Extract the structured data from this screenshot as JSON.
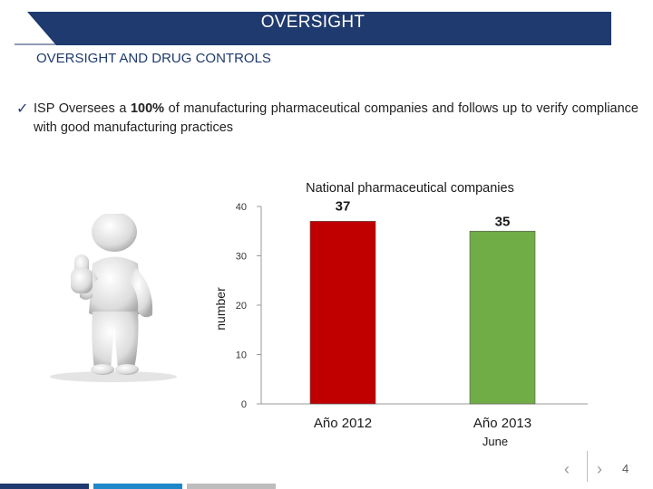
{
  "header": {
    "title": "OVERSIGHT",
    "banner_color": "#1f3a6e"
  },
  "section": {
    "title": "OVERSIGHT AND DRUG CONTROLS"
  },
  "bullet": {
    "check_icon": "check-icon",
    "segments": [
      {
        "text": "ISP Oversees a ",
        "bold": false
      },
      {
        "text": "100%",
        "bold": true
      },
      {
        "text": " of manufacturing pharmaceutical companies and follows up to verify compliance with good manufacturing practices",
        "bold": false
      }
    ]
  },
  "chart_data": {
    "type": "bar",
    "title": "National pharmaceutical companies",
    "ylabel": "number",
    "xlabel": "",
    "categories": [
      "Año 2012",
      "Año 2013"
    ],
    "category_sublabels": [
      "",
      "June"
    ],
    "values": [
      37,
      35
    ],
    "bar_colors": [
      "#c00000",
      "#70ad47"
    ],
    "ylim": [
      0,
      40
    ],
    "yticks": [
      0,
      10,
      20,
      30,
      40
    ],
    "data_labels": [
      "37",
      "35"
    ],
    "grid": false,
    "legend": "none"
  },
  "footer": {
    "page_number": "4",
    "prev_icon": "chevron-left-icon",
    "next_icon": "chevron-right-icon",
    "bar_colors": [
      "#1f3a6e",
      "#1e88c8",
      "#bdbdbd"
    ]
  }
}
